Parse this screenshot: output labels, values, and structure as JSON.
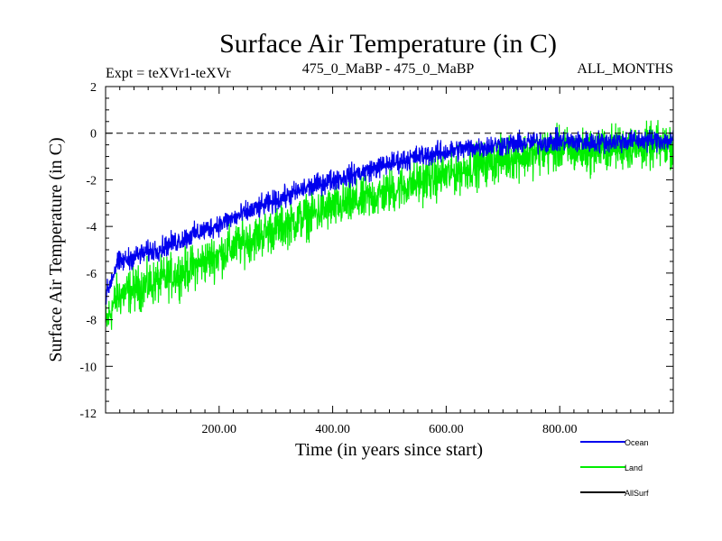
{
  "chart_data": {
    "type": "line",
    "title": "Surface Air Temperature (in C)",
    "subtitle_left": "Expt = teXVr1-teXVr",
    "subtitle_center": "475_0_MaBP - 475_0_MaBP",
    "subtitle_right": "ALL_MONTHS",
    "xlabel": "Time (in years since start)",
    "ylabel": "Surface Air Temperature (in C)",
    "xlim": [
      0,
      1000
    ],
    "ylim": [
      -12,
      2
    ],
    "x_ticks": [
      200,
      400,
      600,
      800
    ],
    "x_tick_labels": [
      "200.00",
      "400.00",
      "600.00",
      "800.00"
    ],
    "y_ticks": [
      -12,
      -10,
      -8,
      -6,
      -4,
      -2,
      0,
      2
    ],
    "y_tick_labels": [
      "-12",
      "-10",
      "-8",
      "-6",
      "-4",
      "-2",
      "0",
      "2"
    ],
    "reference_line": {
      "y": 0,
      "style": "dashed"
    },
    "series": [
      {
        "name": "Land",
        "color": "#00ee00",
        "x": [
          0,
          20,
          50,
          100,
          150,
          200,
          250,
          300,
          350,
          400,
          450,
          500,
          550,
          600,
          650,
          700,
          750,
          800,
          850,
          900,
          950,
          1000
        ],
        "mean": [
          -8.2,
          -7.0,
          -6.7,
          -6.3,
          -5.8,
          -5.2,
          -4.6,
          -4.1,
          -3.6,
          -3.2,
          -2.9,
          -2.5,
          -2.1,
          -1.8,
          -1.4,
          -1.1,
          -0.9,
          -0.7,
          -0.8,
          -0.6,
          -0.6,
          -0.5
        ],
        "spread": 1.4
      },
      {
        "name": "Ocean",
        "color": "#0000ee",
        "x": [
          0,
          20,
          50,
          100,
          150,
          200,
          250,
          300,
          350,
          400,
          450,
          500,
          550,
          600,
          650,
          700,
          750,
          800,
          850,
          900,
          950,
          1000
        ],
        "mean": [
          -7.0,
          -5.6,
          -5.3,
          -4.9,
          -4.4,
          -3.9,
          -3.4,
          -2.9,
          -2.4,
          -2.0,
          -1.7,
          -1.3,
          -1.0,
          -0.8,
          -0.6,
          -0.5,
          -0.4,
          -0.35,
          -0.4,
          -0.35,
          -0.3,
          -0.3
        ],
        "spread": 0.7
      },
      {
        "name": "AllSurf",
        "color": "#000000",
        "x": [],
        "mean": [],
        "spread": 0
      }
    ],
    "legend": {
      "position": "bottom-right",
      "entries": [
        "Ocean",
        "Land",
        "AllSurf"
      ]
    }
  }
}
